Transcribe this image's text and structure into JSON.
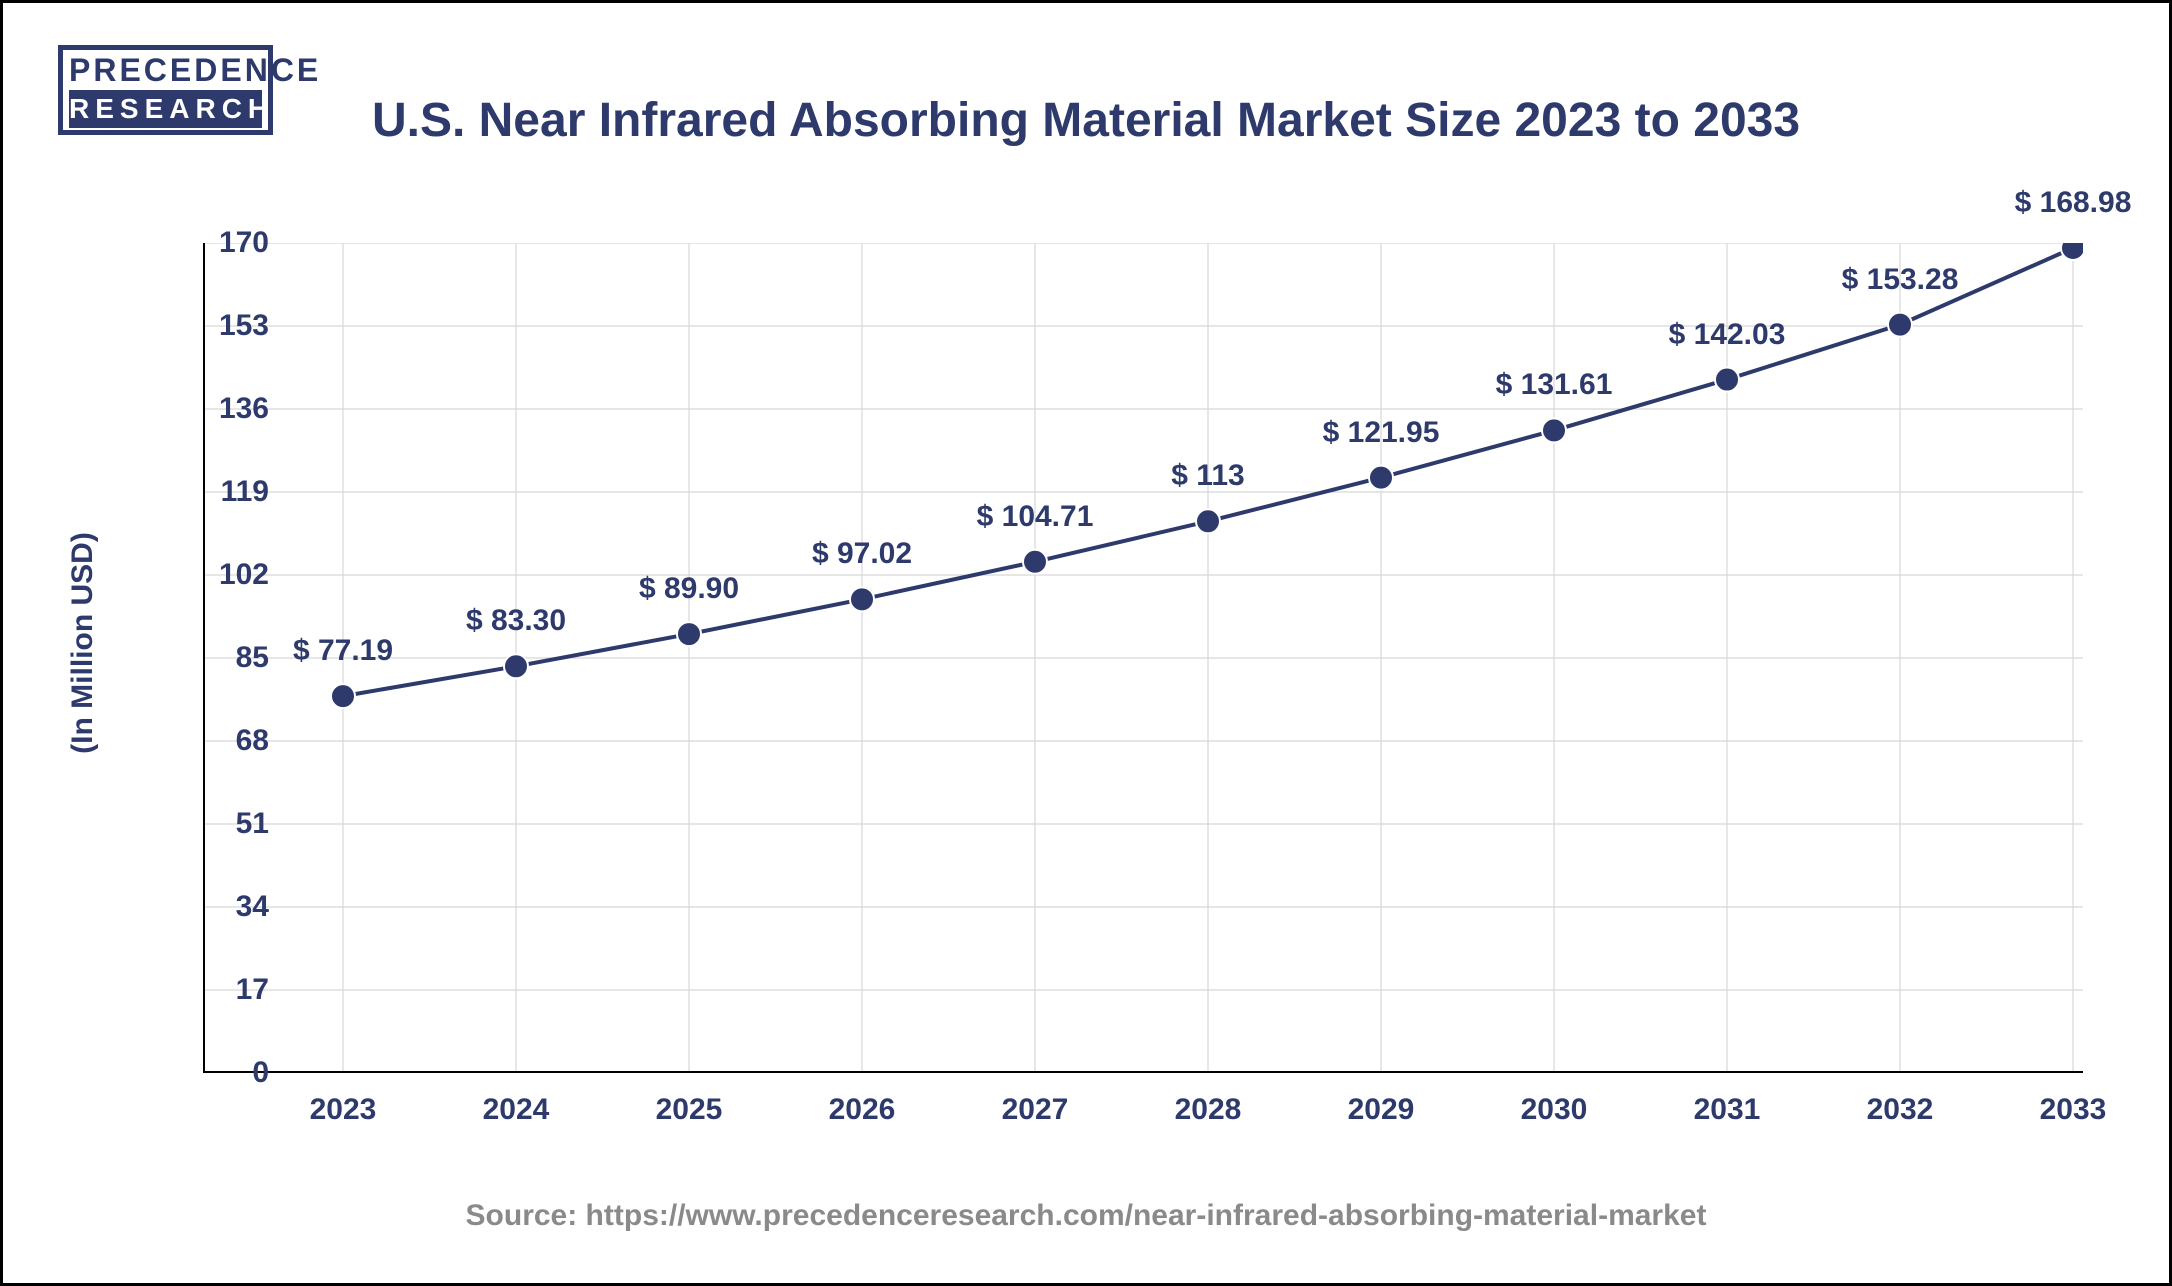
{
  "logo": {
    "line1": "PRECEDENCE",
    "line2": "RESEARCH"
  },
  "title": "U.S. Near Infrared Absorbing Material Market Size 2023 to 2033",
  "y_axis_label": "(In Million USD)",
  "source": "Source: https://www.precedenceresearch.com/near-infrared-absorbing-material-market",
  "chart": {
    "type": "line",
    "background_color": "#ffffff",
    "grid_color": "#d7d7d7",
    "axis_color": "#000000",
    "line_color": "#2d3a6b",
    "marker_fill": "#2d3a6b",
    "marker_stroke": "#ffffff",
    "marker_radius": 12,
    "line_width": 4,
    "axis_width": 4,
    "grid_width": 1.2,
    "font_color": "#2d3a6b",
    "title_fontsize": 48,
    "label_fontsize": 30,
    "tick_fontsize": 30,
    "ylim": [
      0,
      170
    ],
    "yticks": [
      0,
      17,
      34,
      51,
      68,
      85,
      102,
      119,
      136,
      153,
      170
    ],
    "categories": [
      "2023",
      "2024",
      "2025",
      "2026",
      "2027",
      "2028",
      "2029",
      "2030",
      "2031",
      "2032",
      "2033"
    ],
    "values": [
      77.19,
      83.3,
      89.9,
      97.02,
      104.71,
      113,
      121.95,
      131.61,
      142.03,
      153.28,
      168.98
    ],
    "value_labels": [
      "$ 77.19",
      "$ 83.30",
      "$ 89.90",
      "$ 97.02",
      "$ 104.71",
      "$ 113",
      "$ 121.95",
      "$ 131.61",
      "$ 142.03",
      "$ 153.28",
      "$ 168.98"
    ]
  }
}
